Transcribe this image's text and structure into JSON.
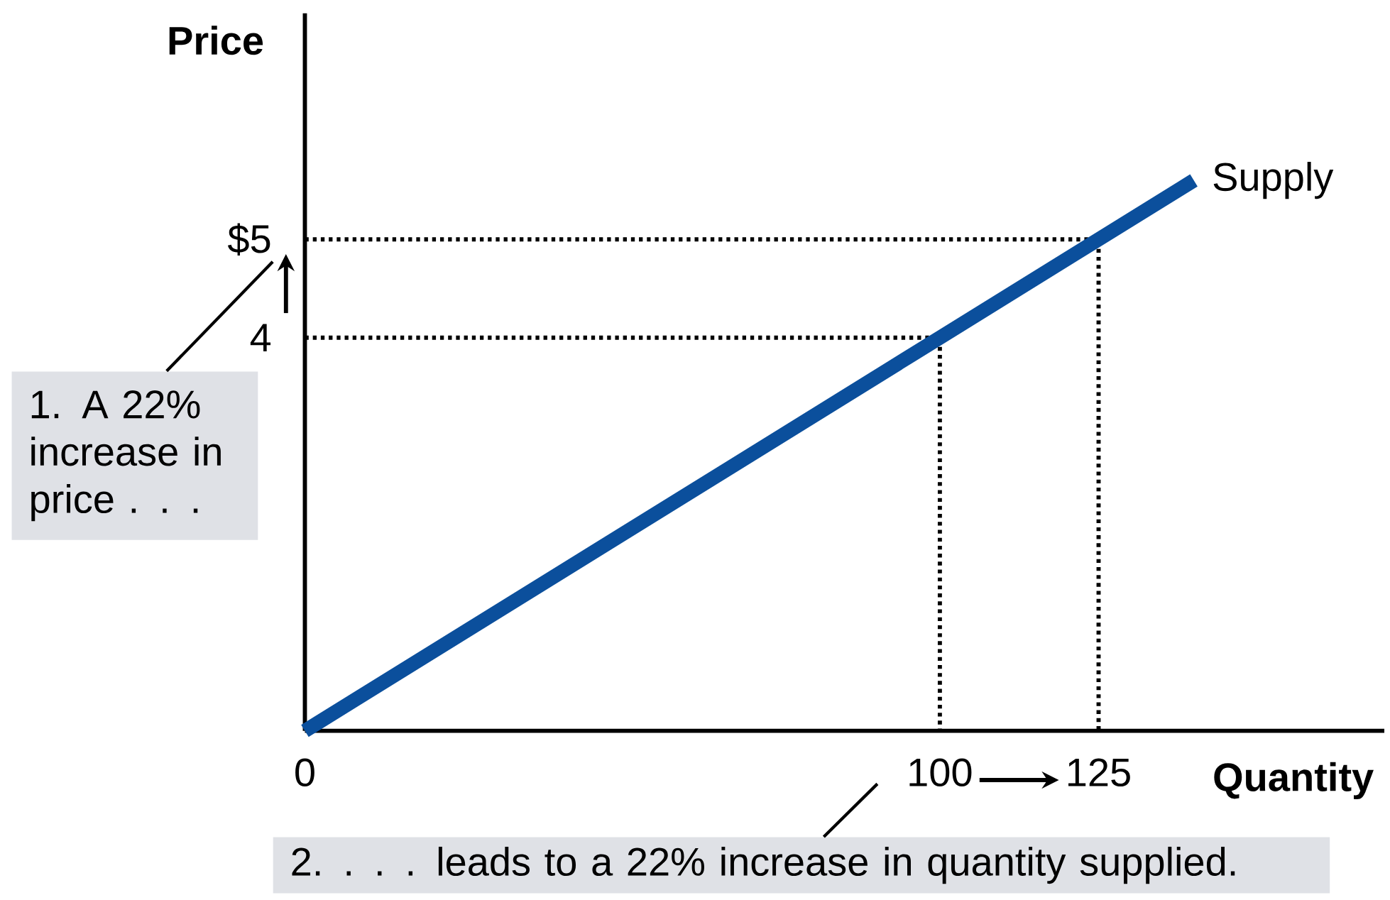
{
  "chart_data": {
    "type": "line",
    "xlabel": "Quantity",
    "ylabel": "Price",
    "series": [
      {
        "x": [
          0,
          100,
          100
        ],
        "values": [
          4,
          4,
          0
        ],
        "color": "#000000",
        "line_style": "dotted"
      },
      {
        "x": [
          0,
          125,
          125
        ],
        "values": [
          5,
          5,
          0
        ],
        "color": "#000000",
        "line_style": "dotted"
      },
      {
        "name": "Supply",
        "x": [
          0,
          100,
          125,
          140
        ],
        "values": [
          0,
          4,
          5,
          5.6
        ],
        "color": "#0b4f9c"
      }
    ],
    "xlim": [
      0,
      170
    ],
    "ylim": [
      0,
      7.3
    ],
    "xticks": [
      0,
      100,
      125
    ],
    "yticks": [
      4,
      {
        "value": 5,
        "label": "$5"
      }
    ],
    "annotations": [
      "1. A 22% increase in price . . .",
      "2.  . . . leads to a 22% increase in quantity supplied."
    ],
    "grid": false,
    "legend": false,
    "marker": "none",
    "line_style": "solid"
  }
}
